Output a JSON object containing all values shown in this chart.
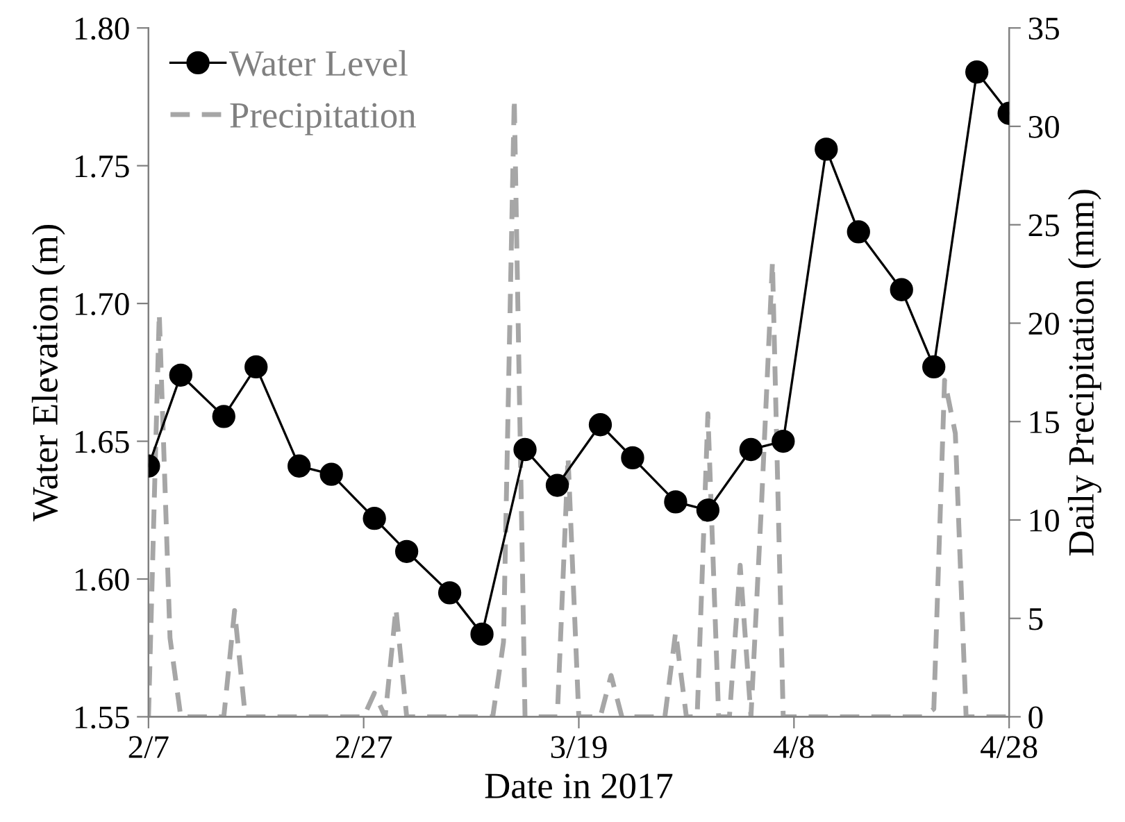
{
  "chart_data": {
    "type": "line",
    "xlabel": "Date in 2017",
    "ylabel": "Water Elevation (m)",
    "y2label": "Daily Precipitation (mm)",
    "xlim": [
      "2017-02-07",
      "2017-04-28"
    ],
    "xticks": [
      {
        "value": "2017-02-07",
        "label": "2/7"
      },
      {
        "value": "2017-02-27",
        "label": "2/27"
      },
      {
        "value": "2017-03-19",
        "label": "3/19"
      },
      {
        "value": "2017-04-08",
        "label": "4/8"
      },
      {
        "value": "2017-04-28",
        "label": "4/28"
      }
    ],
    "ylim": [
      1.55,
      1.8
    ],
    "yticks": [
      {
        "value": 1.55,
        "label": "1.55"
      },
      {
        "value": 1.6,
        "label": "1.60"
      },
      {
        "value": 1.65,
        "label": "1.65"
      },
      {
        "value": 1.7,
        "label": "1.70"
      },
      {
        "value": 1.75,
        "label": "1.75"
      },
      {
        "value": 1.8,
        "label": "1.80"
      }
    ],
    "y2lim": [
      0,
      35
    ],
    "y2ticks": [
      0,
      5,
      10,
      15,
      20,
      25,
      30,
      35
    ],
    "grid": false,
    "legend": "top left",
    "series": [
      {
        "name": "Water Level",
        "color": "#000000",
        "marker": "circle",
        "line_style": "solid",
        "x": [
          "2017-02-07",
          "2017-02-10",
          "2017-02-14",
          "2017-02-17",
          "2017-02-21",
          "2017-02-24",
          "2017-02-28",
          "2017-03-03",
          "2017-03-07",
          "2017-03-10",
          "2017-03-14",
          "2017-03-17",
          "2017-03-21",
          "2017-03-24",
          "2017-03-28",
          "2017-03-31",
          "2017-04-04",
          "2017-04-07",
          "2017-04-11",
          "2017-04-14",
          "2017-04-18",
          "2017-04-21",
          "2017-04-25",
          "2017-04-28"
        ],
        "values": [
          1.641,
          1.674,
          1.659,
          1.677,
          1.641,
          1.638,
          1.622,
          1.61,
          1.595,
          1.58,
          1.647,
          1.634,
          1.656,
          1.644,
          1.628,
          1.625,
          1.647,
          1.65,
          1.756,
          1.726,
          1.705,
          1.677,
          1.784,
          1.769
        ]
      },
      {
        "name": "Precipitation",
        "color": "#a6a6a6",
        "marker": "none",
        "line_style": "dashed",
        "axis": "y2",
        "x": [
          "2017-02-07",
          "2017-02-08",
          "2017-02-09",
          "2017-02-10",
          "2017-02-14",
          "2017-02-15",
          "2017-02-16",
          "2017-02-27",
          "2017-02-28",
          "2017-03-01",
          "2017-03-02",
          "2017-03-03",
          "2017-03-11",
          "2017-03-12",
          "2017-03-13",
          "2017-03-14",
          "2017-03-17",
          "2017-03-18",
          "2017-03-19",
          "2017-03-21",
          "2017-03-22",
          "2017-03-23",
          "2017-03-27",
          "2017-03-28",
          "2017-03-29",
          "2017-03-30",
          "2017-03-31",
          "2017-04-01",
          "2017-04-02",
          "2017-04-03",
          "2017-04-04",
          "2017-04-05",
          "2017-04-06",
          "2017-04-07",
          "2017-04-20",
          "2017-04-21",
          "2017-04-22",
          "2017-04-23",
          "2017-04-24",
          "2017-04-28"
        ],
        "values": [
          0,
          20.5,
          4,
          0,
          0,
          5.4,
          0,
          0,
          1.2,
          0,
          5.5,
          0,
          0,
          3.8,
          31.4,
          0,
          0,
          13.2,
          0,
          0,
          2.1,
          0,
          0,
          4.3,
          0,
          0,
          15.4,
          0,
          0,
          7.7,
          0,
          11,
          23.1,
          0,
          0,
          0.4,
          17.1,
          14.4,
          0,
          0
        ]
      }
    ]
  }
}
